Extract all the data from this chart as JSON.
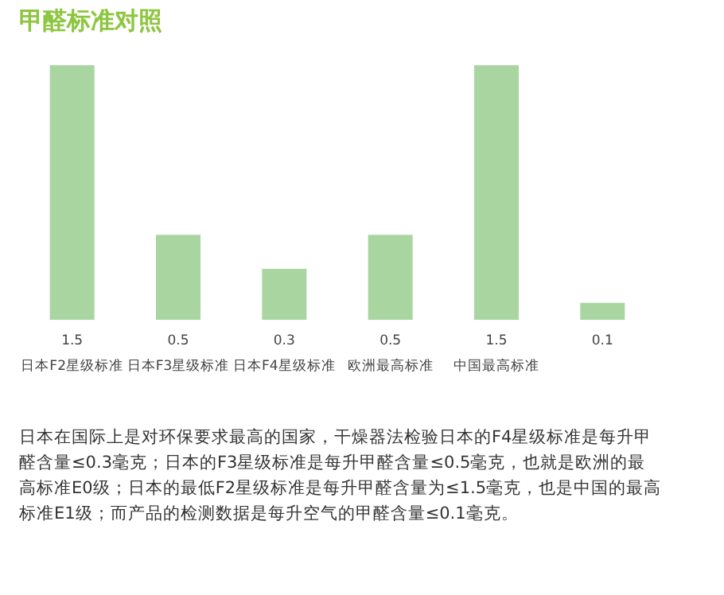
{
  "chart_data": {
    "type": "bar",
    "title": "甲醛标准对照",
    "categories": [
      "日本F2星级标准",
      "日本F3星级标准",
      "日本F4星级标准",
      "欧洲最高标准",
      "中国最高标准",
      null
    ],
    "values": [
      1.5,
      0.5,
      0.3,
      0.5,
      1.5,
      0.1
    ],
    "value_labels": [
      "1.5",
      "0.5",
      "0.3",
      "0.5",
      "1.5",
      "0.1"
    ],
    "color": "#a8d5a0",
    "grid": false,
    "annotations": [
      "日本在国际上是对环保要求最高的国家，干燥器法检验日本的F4星级标准是每升甲醛含量≤0.3毫克；日本的F3星级标准是每升甲醛含量≤0.5毫克，也就是欧洲的最高标准E0级；日本的最低F2星级标准是每升甲醛含量为≤1.5毫克，也是中国的最高标准E1级；而产品的检测数据是每升空气的甲醛含量≤0.1毫克。"
    ]
  }
}
